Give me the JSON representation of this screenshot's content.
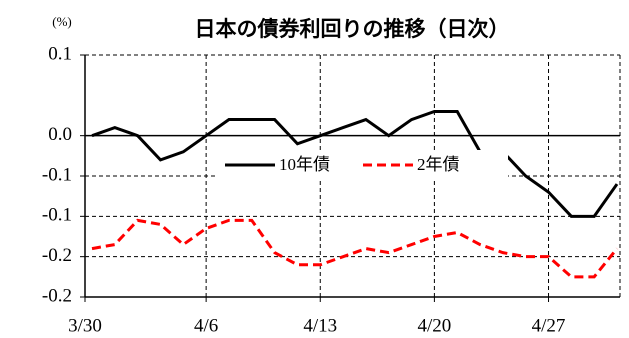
{
  "chart_data": {
    "type": "line",
    "title": "日本の債券利回りの推移（日次）",
    "y_unit": "(%)",
    "categories": [
      "3/30",
      null,
      null,
      null,
      null,
      "4/6",
      null,
      null,
      null,
      null,
      "4/13",
      null,
      null,
      null,
      null,
      "4/20",
      null,
      null,
      null,
      null,
      "4/27",
      null,
      null,
      null
    ],
    "series": [
      {
        "name": "10年債",
        "color": "#000000",
        "dashed": false,
        "values": [
          0.0,
          0.01,
          0.0,
          -0.03,
          -0.02,
          0.0,
          0.02,
          0.02,
          0.02,
          -0.01,
          0.0,
          0.01,
          0.02,
          0.0,
          0.02,
          0.03,
          0.03,
          -0.02,
          -0.02,
          -0.05,
          -0.07,
          -0.1,
          -0.1,
          -0.06
        ]
      },
      {
        "name": "2年債",
        "color": "#ff0000",
        "dashed": true,
        "values": [
          -0.14,
          -0.135,
          -0.105,
          -0.11,
          -0.135,
          -0.115,
          -0.105,
          -0.105,
          -0.145,
          -0.16,
          -0.16,
          -0.15,
          -0.14,
          -0.145,
          -0.135,
          -0.125,
          -0.12,
          -0.135,
          -0.145,
          -0.15,
          -0.15,
          -0.175,
          -0.175,
          -0.14
        ]
      }
    ],
    "ylim": [
      -0.2,
      0.1
    ],
    "yticks": [
      {
        "value": 0.1,
        "label": "0.1"
      },
      {
        "value": 0,
        "label": "0.0"
      },
      {
        "value": -0.05,
        "label": "-0.1"
      },
      {
        "value": -0.1,
        "label": "-0.1"
      },
      {
        "value": -0.15,
        "label": "-0.2"
      },
      {
        "value": -0.2,
        "label": "-0.2"
      }
    ],
    "grid": true,
    "legend": "center"
  }
}
